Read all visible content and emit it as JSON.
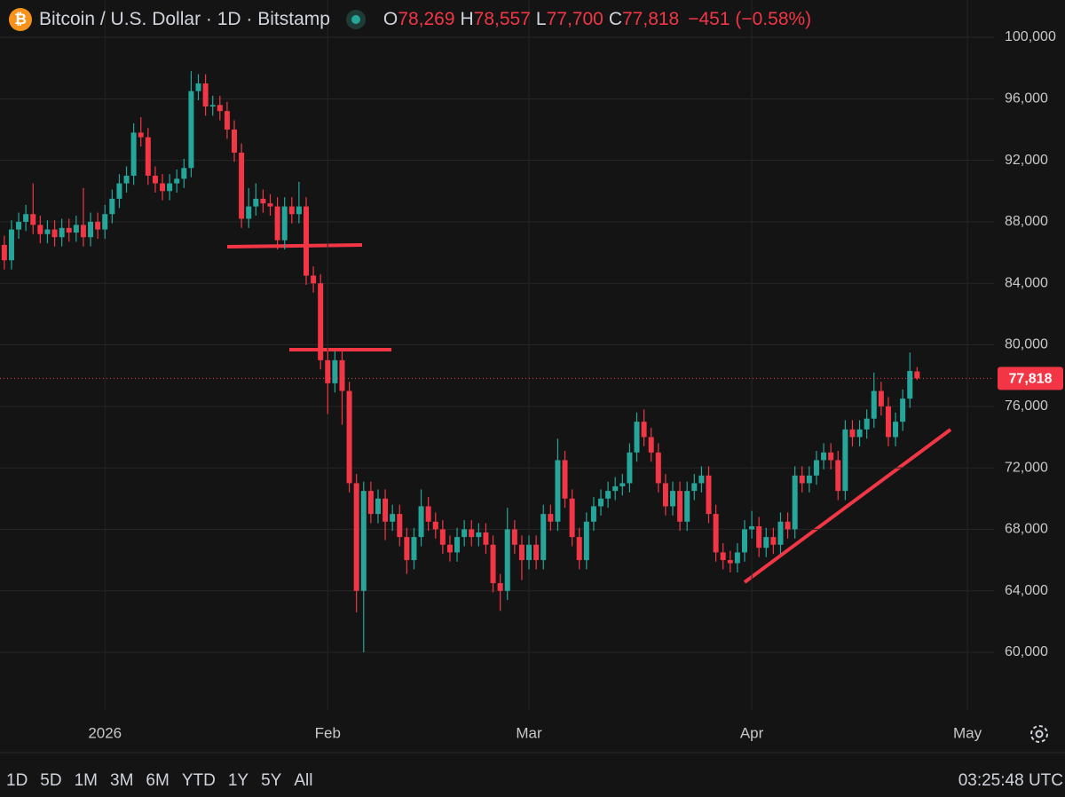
{
  "chart_data": {
    "type": "candlestick",
    "title": "Bitcoin / U.S. Dollar · 1D · Bitstamp",
    "ohlc_header": {
      "open_label": "O",
      "open": "78,269",
      "high_label": "H",
      "high": "78,557",
      "low_label": "L",
      "low": "77,700",
      "close_label": "C",
      "close": "77,818",
      "change": "−451 (−0.58%)"
    },
    "last_price_label": "77,818",
    "up_color": "#26a69a",
    "down_color": "#f23645",
    "grid": true,
    "xlim": [
      -0.6,
      137.7
    ],
    "xticks": [
      {
        "value": 14,
        "label": "2026"
      },
      {
        "value": 45,
        "label": "Feb"
      },
      {
        "value": 73,
        "label": "Mar"
      },
      {
        "value": 104,
        "label": "Apr"
      },
      {
        "value": 134,
        "label": "May"
      }
    ],
    "ylim": [
      56250,
      102425
    ],
    "yticks": [
      {
        "value": 60000,
        "label": "60,000"
      },
      {
        "value": 64000,
        "label": "64,000"
      },
      {
        "value": 68000,
        "label": "68,000"
      },
      {
        "value": 72000,
        "label": "72,000"
      },
      {
        "value": 76000,
        "label": "76,000"
      },
      {
        "value": 80000,
        "label": "80,000"
      },
      {
        "value": 84000,
        "label": "84,000"
      },
      {
        "value": 88000,
        "label": "88,000"
      },
      {
        "value": 92000,
        "label": "92,000"
      },
      {
        "value": 96000,
        "label": "96,000"
      },
      {
        "value": 100000,
        "label": "100,000"
      }
    ],
    "open": [
      86500,
      85500,
      87500,
      88000,
      88500,
      87800,
      87200,
      87500,
      87000,
      87600,
      87300,
      87800,
      87000,
      88000,
      87500,
      88500,
      89500,
      90500,
      91000,
      93800,
      93500,
      91000,
      90500,
      90000,
      90500,
      90800,
      91500,
      96500,
      97000,
      95500,
      95600,
      95200,
      94000,
      92500,
      88200,
      89000,
      89500,
      89200,
      89000,
      86800,
      89000,
      88500,
      89000,
      84500,
      84000,
      79000,
      77500,
      79000,
      77000,
      71000,
      64000,
      70500,
      69000,
      70000,
      68500,
      69000,
      67500,
      66000,
      67500,
      69500,
      68500,
      68000,
      67000,
      66500,
      67500,
      68000,
      67500,
      67800,
      67000,
      64500,
      64000,
      68000,
      67000,
      66000,
      67000,
      66000,
      69000,
      68500,
      72500,
      70000,
      67500,
      66000,
      68500,
      69500,
      70000,
      70500,
      70800,
      71000,
      73000,
      75000,
      74000,
      73000,
      71000,
      69500,
      70500,
      68500,
      70500,
      71000,
      71500,
      69000,
      66500,
      66000,
      65800,
      66500,
      68000,
      68200,
      66800,
      67500,
      67000,
      68500,
      68000,
      71500,
      71000,
      71500,
      72500,
      73000,
      72500,
      70500,
      74500,
      74000,
      74500,
      75200,
      77000,
      76000,
      74000,
      75000,
      76500,
      78269
    ],
    "high": [
      87100,
      88100,
      88600,
      89100,
      90500,
      88400,
      88100,
      88100,
      88200,
      88200,
      88400,
      90200,
      88600,
      88600,
      89100,
      90100,
      91100,
      91600,
      94400,
      94800,
      94100,
      91600,
      91100,
      91100,
      91400,
      92100,
      97800,
      97600,
      97600,
      96200,
      96200,
      95800,
      94600,
      93100,
      90200,
      90500,
      90100,
      89800,
      89600,
      89600,
      89600,
      90600,
      89600,
      85100,
      84600,
      79600,
      79600,
      79600,
      77600,
      71600,
      71100,
      71100,
      70600,
      70600,
      69600,
      69600,
      68100,
      68100,
      70600,
      70100,
      69100,
      68600,
      67600,
      68100,
      68600,
      68600,
      68400,
      68400,
      67600,
      65100,
      69400,
      68600,
      67600,
      67600,
      67600,
      69600,
      69600,
      73900,
      73100,
      70600,
      68100,
      69100,
      70100,
      70600,
      71100,
      71400,
      71600,
      73600,
      75600,
      75800,
      74600,
      73600,
      71600,
      71100,
      71100,
      71100,
      71600,
      72100,
      72100,
      69600,
      67100,
      66600,
      67100,
      68600,
      69200,
      68800,
      68100,
      68100,
      69100,
      69100,
      72100,
      72100,
      72100,
      73100,
      73600,
      73600,
      73100,
      75100,
      75100,
      75100,
      75800,
      78200,
      77600,
      76600,
      75600,
      77100,
      79500,
      78557
    ],
    "low": [
      84900,
      84900,
      86900,
      87400,
      87200,
      86600,
      86600,
      86400,
      86400,
      86700,
      86700,
      86400,
      86400,
      86900,
      86900,
      87900,
      88900,
      89900,
      90400,
      92900,
      90400,
      89900,
      89400,
      89400,
      89900,
      90200,
      90900,
      95900,
      94900,
      94900,
      94600,
      93400,
      91900,
      87600,
      87600,
      88400,
      88600,
      88400,
      86200,
      86200,
      87900,
      87900,
      83900,
      83400,
      78400,
      75500,
      76900,
      74800,
      70400,
      62600,
      60000,
      68400,
      68400,
      67300,
      67900,
      66900,
      65100,
      65400,
      66900,
      67900,
      67400,
      66400,
      65900,
      65900,
      66900,
      66900,
      66900,
      66400,
      63900,
      62700,
      63400,
      66400,
      64700,
      65400,
      65400,
      65400,
      67900,
      67900,
      69400,
      66900,
      65400,
      65400,
      67900,
      68900,
      69400,
      69900,
      70200,
      70400,
      72400,
      73400,
      72400,
      70400,
      68900,
      68900,
      67900,
      67900,
      69900,
      70400,
      68400,
      65900,
      65400,
      65200,
      65200,
      65900,
      67400,
      66200,
      66200,
      66400,
      66400,
      67400,
      67400,
      70400,
      70400,
      70900,
      71900,
      71900,
      69900,
      69900,
      73400,
      73400,
      73900,
      74600,
      75400,
      73400,
      73400,
      74400,
      75900,
      77700
    ],
    "close": [
      85500,
      87500,
      88000,
      88500,
      87800,
      87200,
      87500,
      87000,
      87600,
      87300,
      87800,
      87000,
      88000,
      87500,
      88500,
      89500,
      90500,
      91000,
      93800,
      93500,
      91000,
      90500,
      90000,
      90500,
      90800,
      91500,
      96500,
      97000,
      95500,
      95600,
      95200,
      94000,
      92500,
      88200,
      89000,
      89500,
      89200,
      89000,
      86800,
      89000,
      88500,
      89000,
      84500,
      84000,
      79000,
      77500,
      79000,
      77000,
      71000,
      64000,
      70500,
      69000,
      70000,
      68500,
      69000,
      67500,
      66000,
      67500,
      69500,
      68500,
      68000,
      67000,
      66500,
      67500,
      68000,
      67500,
      67800,
      67000,
      64500,
      64000,
      68000,
      67000,
      66000,
      67000,
      66000,
      69000,
      68500,
      72500,
      70000,
      67500,
      66000,
      68500,
      69500,
      70000,
      70500,
      70800,
      71000,
      73000,
      75000,
      74000,
      73000,
      71000,
      69500,
      70500,
      68500,
      70500,
      71000,
      71500,
      69000,
      66500,
      66000,
      65800,
      66500,
      68000,
      68200,
      66800,
      67500,
      67000,
      68500,
      68000,
      71500,
      71000,
      71500,
      72500,
      73000,
      72500,
      70500,
      74500,
      74000,
      74500,
      75200,
      77000,
      76000,
      74000,
      75000,
      76500,
      78300,
      77818
    ]
  },
  "range_buttons": [
    "1D",
    "5D",
    "1M",
    "3M",
    "6M",
    "YTD",
    "1Y",
    "5Y",
    "All"
  ],
  "clock": "03:25:48 UTC"
}
